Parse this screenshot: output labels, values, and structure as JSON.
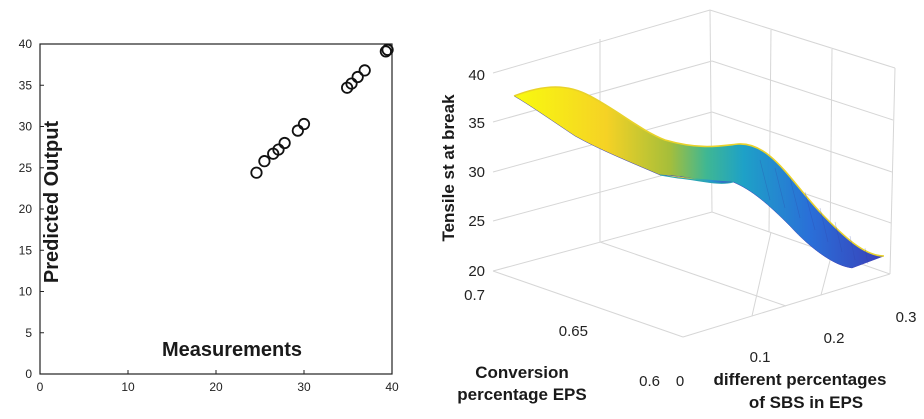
{
  "chart_data": [
    {
      "type": "scatter",
      "title": "",
      "xlabel": "Measurements",
      "ylabel": "Predicted Output",
      "xlim": [
        0,
        40
      ],
      "ylim": [
        0,
        40
      ],
      "xticks": [
        "0",
        "10",
        "20",
        "30",
        "40"
      ],
      "yticks": [
        "0",
        "5",
        "10",
        "15",
        "20",
        "25",
        "30",
        "35",
        "40"
      ],
      "grid": false,
      "marker": "open-circle",
      "points": [
        [
          24.6,
          24.4
        ],
        [
          25.5,
          25.8
        ],
        [
          26.5,
          26.7
        ],
        [
          27.1,
          27.2
        ],
        [
          27.8,
          28.0
        ],
        [
          29.3,
          29.5
        ],
        [
          30.0,
          30.3
        ],
        [
          34.9,
          34.7
        ],
        [
          35.4,
          35.2
        ],
        [
          36.1,
          36.0
        ],
        [
          36.9,
          36.8
        ],
        [
          39.3,
          39.1
        ],
        [
          39.5,
          39.3
        ]
      ]
    },
    {
      "type": "surface",
      "title": "",
      "zlabel": "Tensile st at break",
      "ylabel": "Conversion percentage EPS",
      "xlabel": "different percentages of SBS in EPS",
      "zlim": [
        20,
        40
      ],
      "ylim": [
        0.6,
        0.7
      ],
      "xlim": [
        0,
        0.3
      ],
      "zticks": [
        "20",
        "25",
        "30",
        "35",
        "40"
      ],
      "yticks": [
        "0.6",
        "0.65",
        "0.7"
      ],
      "xticks": [
        "0",
        "0.1",
        "0.2",
        "0.3"
      ],
      "grid": true,
      "colormap": "parula",
      "surface_profile": {
        "x": [
          0,
          0.05,
          0.1,
          0.15,
          0.2,
          0.25,
          0.3
        ],
        "z": [
          39.5,
          37.5,
          33.5,
          30.5,
          27.5,
          24.0,
          22.0
        ]
      }
    }
  ]
}
